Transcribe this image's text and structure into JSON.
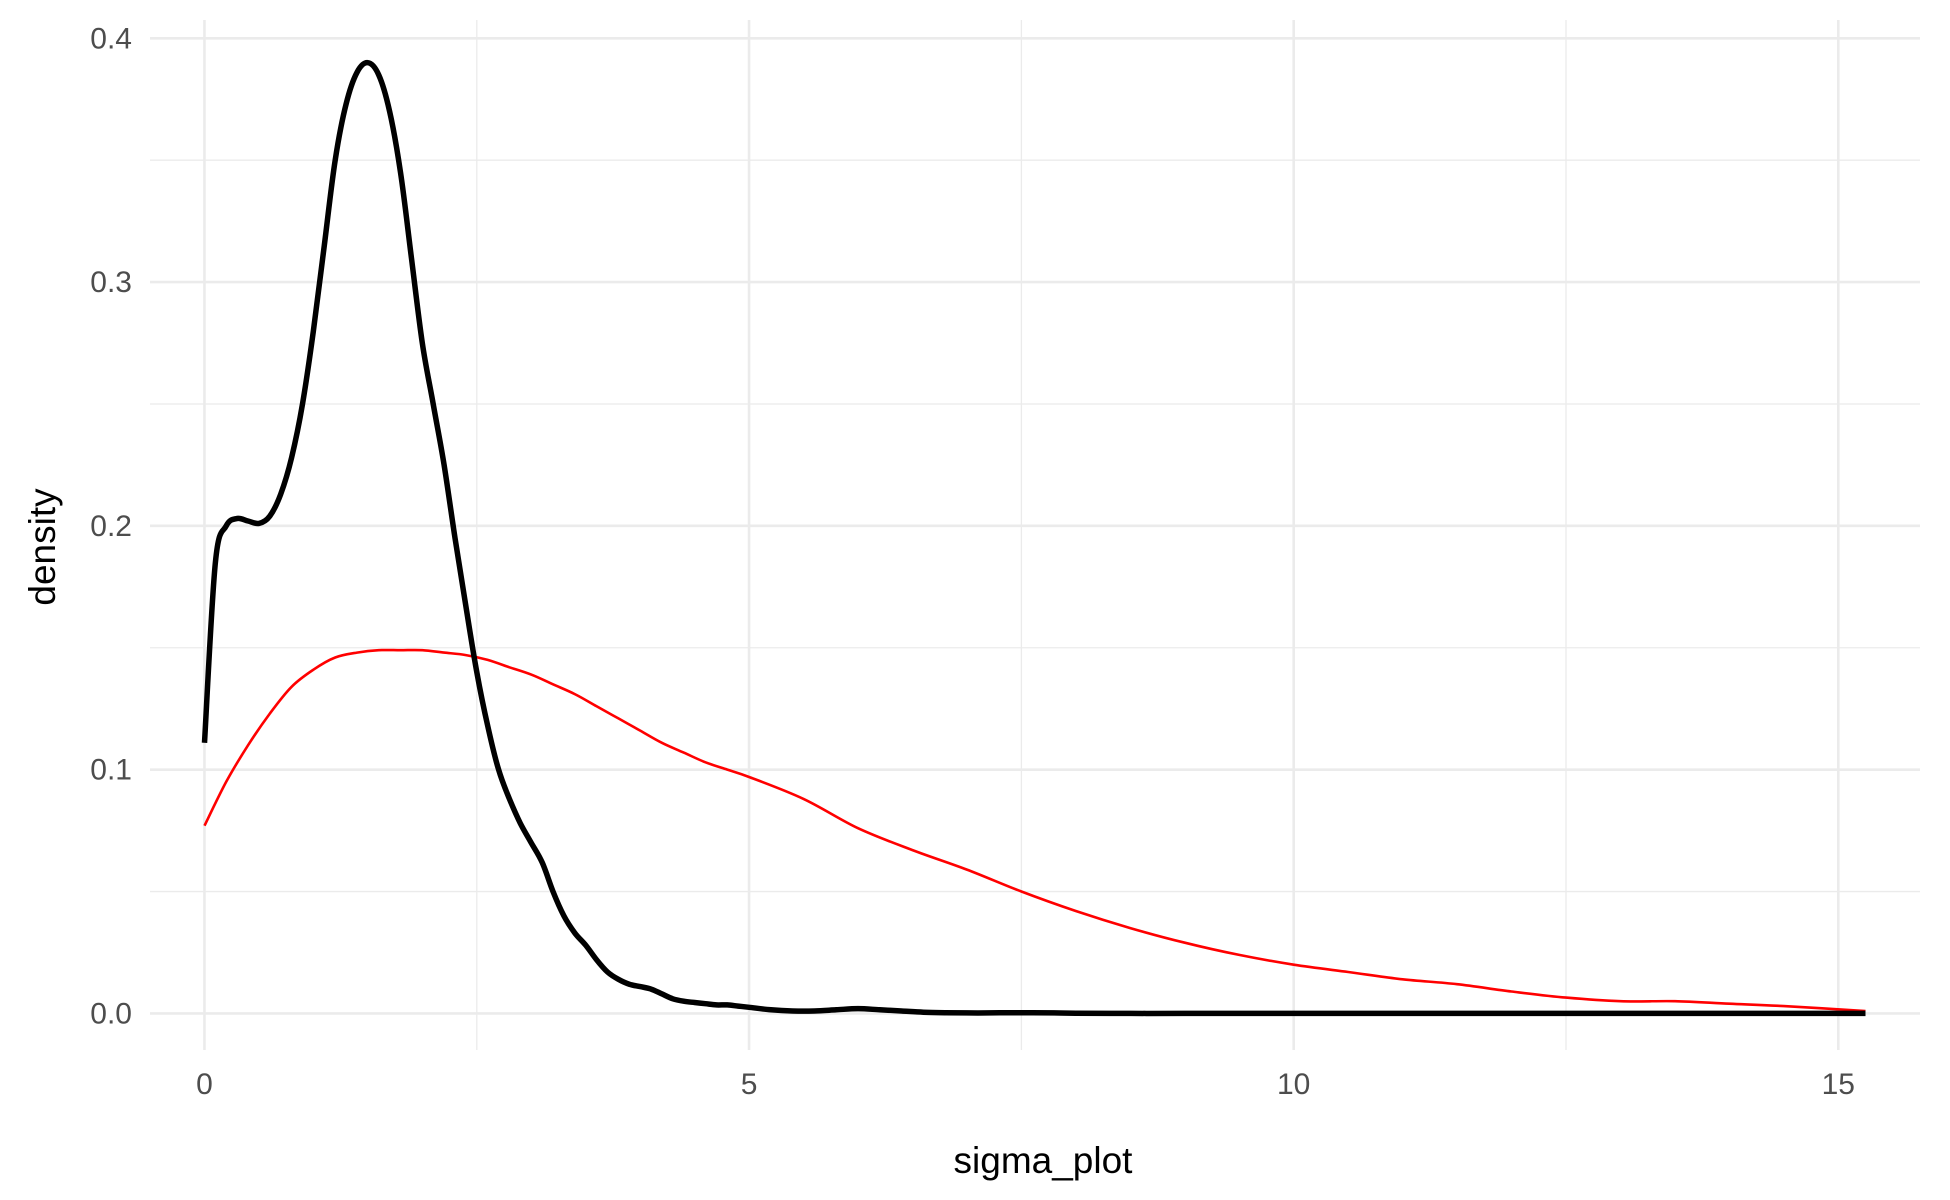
{
  "chart_data": {
    "type": "line",
    "xlabel": "sigma_plot",
    "ylabel": "density",
    "xlim": [
      -0.5,
      15.75
    ],
    "ylim": [
      -0.015,
      0.4075
    ],
    "x_ticks": [
      0,
      5,
      10,
      15
    ],
    "x_tick_labels": [
      "0",
      "5",
      "10",
      "15"
    ],
    "x_minor_ticks": [
      2.5,
      7.5,
      12.5
    ],
    "y_ticks": [
      0.0,
      0.1,
      0.2,
      0.3,
      0.4
    ],
    "y_tick_labels": [
      "0.0",
      "0.1",
      "0.2",
      "0.3",
      "0.4"
    ],
    "y_minor_ticks": [
      0.05,
      0.15,
      0.25,
      0.35
    ],
    "grid": true,
    "legend": "none",
    "series": [
      {
        "color": "#000000",
        "line_width": "thick",
        "x": [
          0,
          0.1,
          0.2,
          0.3,
          0.4,
          0.5,
          0.6,
          0.7,
          0.8,
          0.9,
          1.0,
          1.1,
          1.2,
          1.3,
          1.4,
          1.5,
          1.6,
          1.7,
          1.8,
          1.9,
          2.0,
          2.1,
          2.2,
          2.3,
          2.4,
          2.5,
          2.6,
          2.7,
          2.8,
          2.9,
          3.0,
          3.1,
          3.2,
          3.3,
          3.4,
          3.5,
          3.6,
          3.7,
          3.8,
          3.9,
          4.0,
          4.1,
          4.2,
          4.3,
          4.4,
          4.5,
          4.6,
          4.7,
          4.8,
          4.9,
          5.0,
          5.2,
          5.4,
          5.6,
          5.8,
          6.0,
          6.2,
          6.4,
          6.6,
          6.8,
          7.0,
          7.2,
          7.4,
          7.6,
          7.8,
          8.0,
          8.5,
          9.0,
          10.0,
          11.0,
          12.0,
          13.0,
          14.0,
          15.25
        ],
        "y": [
          0.111,
          0.185,
          0.2,
          0.203,
          0.202,
          0.201,
          0.204,
          0.213,
          0.228,
          0.25,
          0.28,
          0.315,
          0.35,
          0.373,
          0.386,
          0.39,
          0.385,
          0.37,
          0.345,
          0.31,
          0.275,
          0.25,
          0.225,
          0.195,
          0.167,
          0.14,
          0.118,
          0.1,
          0.088,
          0.078,
          0.07,
          0.062,
          0.05,
          0.04,
          0.033,
          0.028,
          0.022,
          0.017,
          0.014,
          0.012,
          0.011,
          0.01,
          0.008,
          0.006,
          0.005,
          0.0045,
          0.004,
          0.0035,
          0.0035,
          0.003,
          0.0025,
          0.0015,
          0.001,
          0.001,
          0.0015,
          0.002,
          0.0015,
          0.001,
          0.0005,
          0.0003,
          0.0002,
          0.0002,
          0.0003,
          0.0003,
          0.0002,
          0.0001,
          0.0,
          0.0,
          0.0,
          0.0,
          0.0,
          0.0,
          0.0,
          0.0
        ]
      },
      {
        "color": "#ff0000",
        "line_width": "thin",
        "x": [
          0,
          0.2,
          0.4,
          0.6,
          0.8,
          1.0,
          1.2,
          1.4,
          1.6,
          1.8,
          2.0,
          2.2,
          2.4,
          2.6,
          2.8,
          3.0,
          3.2,
          3.4,
          3.6,
          3.8,
          4.0,
          4.2,
          4.4,
          4.6,
          4.8,
          5.0,
          5.5,
          6.0,
          6.5,
          7.0,
          7.5,
          8.0,
          8.5,
          9.0,
          9.5,
          10.0,
          10.5,
          11.0,
          11.5,
          12.0,
          12.5,
          13.0,
          13.5,
          14.0,
          14.5,
          15.25
        ],
        "y": [
          0.077,
          0.095,
          0.11,
          0.123,
          0.134,
          0.141,
          0.146,
          0.148,
          0.149,
          0.149,
          0.149,
          0.148,
          0.147,
          0.145,
          0.142,
          0.139,
          0.135,
          0.131,
          0.126,
          0.121,
          0.116,
          0.111,
          0.107,
          0.103,
          0.1,
          0.097,
          0.088,
          0.076,
          0.067,
          0.059,
          0.05,
          0.042,
          0.035,
          0.029,
          0.024,
          0.02,
          0.017,
          0.014,
          0.012,
          0.009,
          0.0065,
          0.005,
          0.005,
          0.004,
          0.003,
          0.001
        ]
      }
    ]
  }
}
